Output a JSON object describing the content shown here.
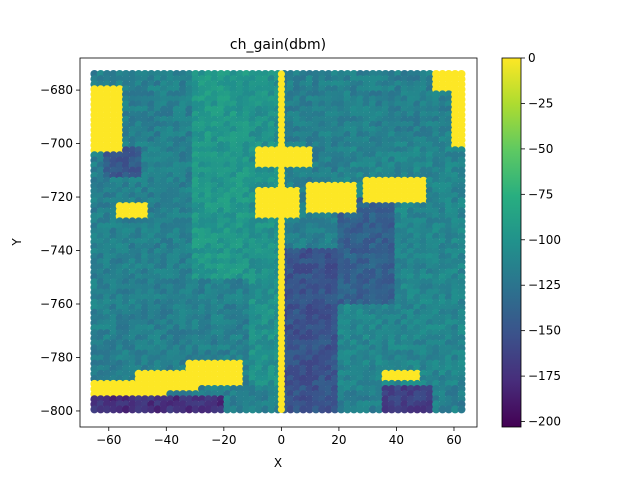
{
  "chart_data": {
    "type": "heatmap",
    "title": "ch_gain(dbm)",
    "xlabel": "X",
    "ylabel": "Y",
    "xlim": [
      -70,
      68
    ],
    "ylim": [
      -806,
      -668
    ],
    "xticks": [
      -60,
      -40,
      -20,
      0,
      20,
      40,
      60
    ],
    "yticks": [
      -800,
      -780,
      -760,
      -740,
      -720,
      -700,
      -680
    ],
    "grid": false,
    "colorbar": {
      "colormap": "viridis",
      "range": [
        -203,
        0
      ],
      "ticks": [
        0,
        -25,
        -50,
        -75,
        -100,
        -125,
        -150,
        -175,
        -200
      ]
    },
    "sample_extent": {
      "x": [
        -65,
        63
      ],
      "y": [
        -800,
        -674
      ]
    },
    "background_level_dbm": -115,
    "saturated_regions": [
      {
        "x": [
          -66,
          -54
        ],
        "y": [
          -703,
          -678
        ],
        "value": 0
      },
      {
        "x": [
          -57,
          -47
        ],
        "y": [
          -728,
          -723
        ],
        "value": 0
      },
      {
        "x": [
          -8,
          12
        ],
        "y": [
          -709,
          -702
        ],
        "value": 0
      },
      {
        "x": [
          -8,
          6
        ],
        "y": [
          -729,
          -717
        ],
        "value": 0
      },
      {
        "x": [
          8,
          26
        ],
        "y": [
          -727,
          -715
        ],
        "value": 0
      },
      {
        "x": [
          29,
          51
        ],
        "y": [
          -723,
          -712
        ],
        "value": 0
      },
      {
        "x": 0,
        "y": [
          -801,
          -673
        ],
        "value": 0
      },
      {
        "x": [
          -66,
          -40
        ],
        "y": [
          -795,
          -789
        ],
        "value": 0
      },
      {
        "x": [
          -50,
          -28
        ],
        "y": [
          -792,
          -786
        ],
        "value": 0
      },
      {
        "x": [
          -32,
          -14
        ],
        "y": [
          -790,
          -782
        ],
        "value": 0
      },
      {
        "x": [
          36,
          48
        ],
        "y": [
          -789,
          -785
        ],
        "value": 0
      },
      {
        "x": [
          53,
          63
        ],
        "y": [
          -681,
          -674
        ],
        "value": 0
      },
      {
        "x": [
          59,
          63
        ],
        "y": [
          -702,
          -681
        ],
        "value": 0
      }
    ],
    "weak_regions": [
      {
        "x": [
          -62,
          -48
        ],
        "y": [
          -712,
          -702
        ],
        "value": -145
      },
      {
        "x": [
          0,
          20
        ],
        "y": [
          -800,
          -740
        ],
        "value": -150
      },
      {
        "x": [
          20,
          40
        ],
        "y": [
          -760,
          -720
        ],
        "value": -140
      },
      {
        "x": [
          36,
          52
        ],
        "y": [
          -800,
          -790
        ],
        "value": -165
      },
      {
        "x": [
          -66,
          -20
        ],
        "y": [
          -801,
          -795
        ],
        "value": -175
      }
    ],
    "stronger_regions": [
      {
        "x": [
          -30,
          -10
        ],
        "y": [
          -750,
          -674
        ],
        "value": -95
      },
      {
        "x": [
          -10,
          0
        ],
        "y": [
          -790,
          -674
        ],
        "value": -100
      },
      {
        "x": [
          20,
          63
        ],
        "y": [
          -790,
          -700
        ],
        "value": -110
      }
    ]
  }
}
